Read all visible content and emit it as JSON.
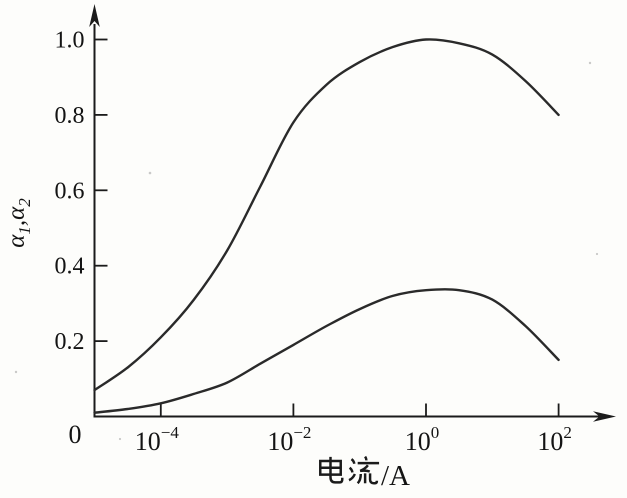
{
  "figure": {
    "background": "#fdfdfb",
    "ink": "#1b1b1b"
  },
  "chart_data": {
    "type": "line",
    "title": "",
    "x_scale": "log10",
    "xlabel": "电流/A",
    "xlabel_cjk": "电流",
    "xlabel_suffix": "/A",
    "ylabel": "α1,α2",
    "ylabel_parts": {
      "alpha1": "α",
      "sub1": "1",
      "comma": ",",
      "alpha2": "α",
      "sub2": "2"
    },
    "origin_label": "0",
    "grid": false,
    "legend": "none",
    "ylim": [
      0,
      1.08
    ],
    "x_range_exponents": [
      -5,
      2.5
    ],
    "yticks": [
      {
        "value": 0.2,
        "label": "0.2"
      },
      {
        "value": 0.4,
        "label": "0.4"
      },
      {
        "value": 0.6,
        "label": "0.6"
      },
      {
        "value": 0.8,
        "label": "0.8"
      },
      {
        "value": 1.0,
        "label": "1.0"
      }
    ],
    "xticks": [
      {
        "exponent": -4,
        "base": "10",
        "superscript": "−4"
      },
      {
        "exponent": -2,
        "base": "10",
        "superscript": "−2"
      },
      {
        "exponent": 0,
        "base": "10",
        "superscript": "0"
      },
      {
        "exponent": 2,
        "base": "10",
        "superscript": "2"
      }
    ],
    "series": [
      {
        "name": "alpha1",
        "label": "α1",
        "points_log10x_y": [
          [
            -5,
            0.07
          ],
          [
            -4.5,
            0.13
          ],
          [
            -4,
            0.21
          ],
          [
            -3.5,
            0.31
          ],
          [
            -3,
            0.44
          ],
          [
            -2.5,
            0.61
          ],
          [
            -2,
            0.78
          ],
          [
            -1.5,
            0.88
          ],
          [
            -1,
            0.94
          ],
          [
            -0.5,
            0.98
          ],
          [
            0,
            1.0
          ],
          [
            0.5,
            0.99
          ],
          [
            1,
            0.96
          ],
          [
            1.5,
            0.89
          ],
          [
            2,
            0.8
          ]
        ]
      },
      {
        "name": "alpha2",
        "label": "α2",
        "points_log10x_y": [
          [
            -5,
            0.01
          ],
          [
            -4.5,
            0.02
          ],
          [
            -4,
            0.035
          ],
          [
            -3.5,
            0.06
          ],
          [
            -3,
            0.09
          ],
          [
            -2.5,
            0.14
          ],
          [
            -2,
            0.19
          ],
          [
            -1.5,
            0.24
          ],
          [
            -1,
            0.285
          ],
          [
            -0.5,
            0.32
          ],
          [
            0,
            0.335
          ],
          [
            0.5,
            0.335
          ],
          [
            1,
            0.31
          ],
          [
            1.5,
            0.24
          ],
          [
            2,
            0.15
          ]
        ]
      }
    ]
  }
}
